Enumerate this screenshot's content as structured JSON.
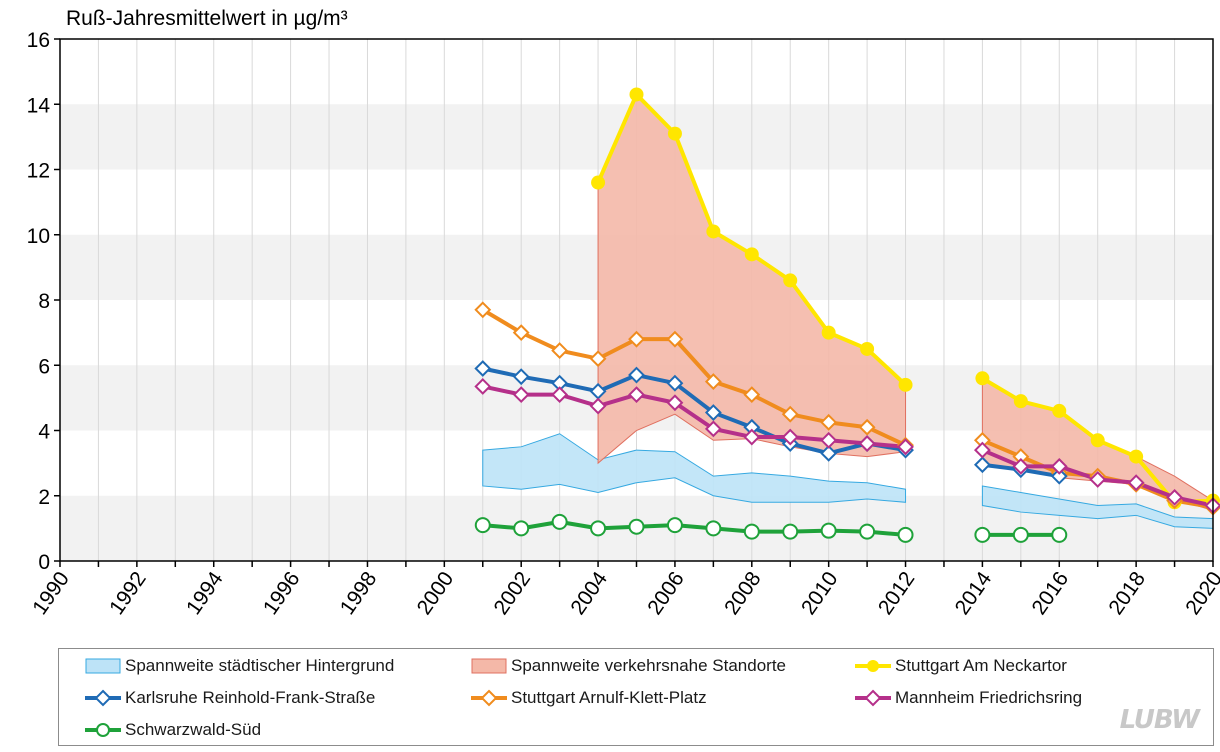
{
  "chart_data": {
    "type": "line",
    "title": "Ruß-Jahresmittelwert in µg/m³",
    "ylim": [
      0,
      16
    ],
    "yticks": [
      0,
      2,
      4,
      6,
      8,
      10,
      12,
      14,
      16
    ],
    "xlim": [
      1990,
      2020
    ],
    "xticks": [
      1990,
      1992,
      1994,
      1996,
      1998,
      2000,
      2002,
      2004,
      2006,
      2008,
      2010,
      2012,
      2014,
      2016,
      2018,
      2020
    ],
    "bands": [
      {
        "name": "Spannweite städtischer Hintergrund",
        "fill": "#bde3f7",
        "stroke": "#36a9e1",
        "segments": [
          {
            "x": [
              2001,
              2002,
              2003,
              2004,
              2005,
              2006,
              2007,
              2008,
              2009,
              2010,
              2011,
              2012
            ],
            "lower": [
              2.3,
              2.2,
              2.35,
              2.1,
              2.4,
              2.55,
              2.0,
              1.8,
              1.8,
              1.8,
              1.9,
              1.8
            ],
            "upper": [
              3.4,
              3.5,
              3.9,
              3.1,
              3.4,
              3.35,
              2.6,
              2.7,
              2.6,
              2.45,
              2.4,
              2.2
            ]
          },
          {
            "x": [
              2014,
              2015,
              2016,
              2017,
              2018,
              2019,
              2020
            ],
            "lower": [
              1.7,
              1.5,
              1.4,
              1.3,
              1.4,
              1.05,
              1.0
            ],
            "upper": [
              2.3,
              2.1,
              1.9,
              1.7,
              1.75,
              1.35,
              1.3
            ]
          }
        ]
      },
      {
        "name": "Spannweite verkehrsnahe Standorte",
        "fill": "#f4b8a8",
        "stroke": "#e07060",
        "segments": [
          {
            "x": [
              2004,
              2005,
              2006,
              2007,
              2008,
              2009,
              2010,
              2011,
              2012
            ],
            "lower": [
              3.0,
              4.0,
              4.5,
              3.7,
              3.75,
              3.5,
              3.3,
              3.2,
              3.35
            ],
            "upper": [
              11.6,
              14.3,
              13.1,
              10.1,
              9.4,
              8.6,
              7.0,
              6.5,
              5.4
            ]
          },
          {
            "x": [
              2014,
              2015,
              2016,
              2017,
              2018,
              2019,
              2020
            ],
            "lower": [
              3.0,
              2.8,
              2.55,
              2.45,
              2.35,
              1.9,
              1.55
            ],
            "upper": [
              5.6,
              4.9,
              4.6,
              3.7,
              3.2,
              2.6,
              1.85
            ]
          }
        ]
      }
    ],
    "series": [
      {
        "name": "Stuttgart Am Neckartor",
        "color": "#ffe600",
        "marker": "dot",
        "segments": [
          {
            "x": [
              2004,
              2005,
              2006,
              2007,
              2008,
              2009,
              2010,
              2011,
              2012
            ],
            "values": [
              11.6,
              14.3,
              13.1,
              10.1,
              9.4,
              8.6,
              7.0,
              6.5,
              5.4
            ]
          },
          {
            "x": [
              2014,
              2015,
              2016,
              2017,
              2018,
              2019,
              2020
            ],
            "values": [
              5.6,
              4.9,
              4.6,
              3.7,
              3.2,
              1.8,
              1.85
            ]
          }
        ]
      },
      {
        "name": "Stuttgart Arnulf-Klett-Platz",
        "color": "#f08c1e",
        "marker": "diamond",
        "segments": [
          {
            "x": [
              2001,
              2002,
              2003,
              2004,
              2005,
              2006,
              2007,
              2008,
              2009,
              2010,
              2011,
              2012
            ],
            "values": [
              7.7,
              7.0,
              6.45,
              6.2,
              6.8,
              6.8,
              5.5,
              5.1,
              4.5,
              4.25,
              4.1,
              3.55
            ]
          },
          {
            "x": [
              2014,
              2015,
              2016,
              2017,
              2018,
              2019,
              2020
            ],
            "values": [
              3.7,
              3.2,
              2.7,
              2.6,
              2.35,
              1.85,
              1.65
            ]
          }
        ]
      },
      {
        "name": "Karlsruhe Reinhold-Frank-Straße",
        "color": "#1f6bb5",
        "marker": "diamond",
        "segments": [
          {
            "x": [
              2001,
              2002,
              2003,
              2004,
              2005,
              2006,
              2007,
              2008,
              2009,
              2010,
              2011,
              2012
            ],
            "values": [
              5.9,
              5.65,
              5.45,
              5.2,
              5.7,
              5.45,
              4.55,
              4.1,
              3.6,
              3.3,
              3.6,
              3.4
            ]
          },
          {
            "x": [
              2014,
              2015,
              2016
            ],
            "values": [
              2.95,
              2.8,
              2.6
            ]
          }
        ]
      },
      {
        "name": "Mannheim Friedrichsring",
        "color": "#b5308a",
        "marker": "diamond",
        "segments": [
          {
            "x": [
              2001,
              2002,
              2003,
              2004,
              2005,
              2006,
              2007,
              2008,
              2009,
              2010,
              2011,
              2012
            ],
            "values": [
              5.35,
              5.1,
              5.1,
              4.75,
              5.1,
              4.85,
              4.05,
              3.8,
              3.8,
              3.7,
              3.6,
              3.5
            ]
          },
          {
            "x": [
              2014,
              2015,
              2016,
              2017,
              2018,
              2019,
              2020
            ],
            "values": [
              3.4,
              2.9,
              2.9,
              2.5,
              2.4,
              1.95,
              1.7
            ]
          }
        ]
      },
      {
        "name": "Schwarzwald-Süd",
        "color": "#1fa23a",
        "marker": "ring",
        "segments": [
          {
            "x": [
              2001,
              2002,
              2003,
              2004,
              2005,
              2006,
              2007,
              2008,
              2009,
              2010,
              2011,
              2012
            ],
            "values": [
              1.1,
              1.0,
              1.2,
              1.0,
              1.05,
              1.1,
              1.0,
              0.9,
              0.9,
              0.93,
              0.9,
              0.8
            ]
          },
          {
            "x": [
              2014,
              2015,
              2016
            ],
            "values": [
              0.8,
              0.8,
              0.8
            ]
          }
        ]
      }
    ],
    "legend": {
      "entries": [
        "Spannweite städtischer Hintergrund",
        "Spannweite verkehrsnahe Standorte",
        "Stuttgart Am Neckartor",
        "Karlsruhe Reinhold-Frank-Straße",
        "Stuttgart Arnulf-Klett-Platz",
        "Mannheim Friedrichsring",
        "Schwarzwald-Süd"
      ],
      "placement": "bottom"
    },
    "logo_text": "LUBW"
  }
}
